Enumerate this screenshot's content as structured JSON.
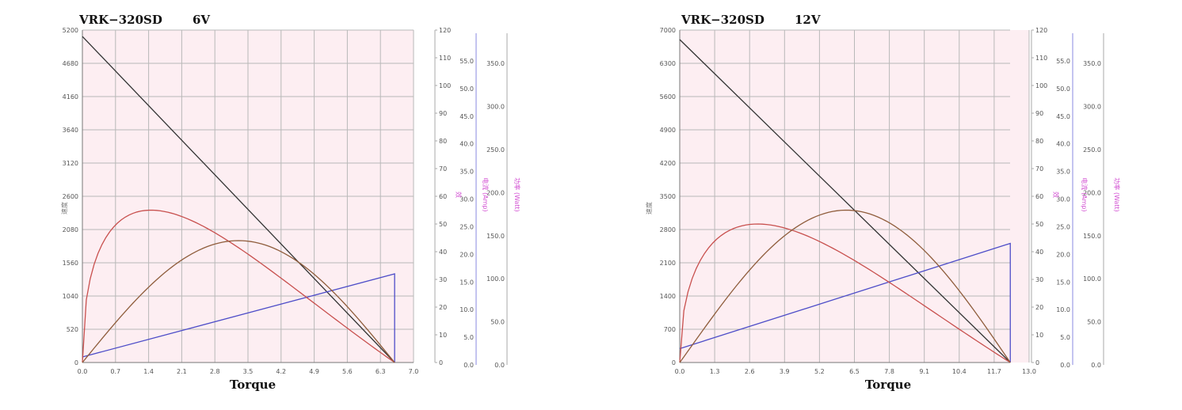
{
  "chart_data": [
    {
      "type": "line",
      "title": "VRK−320SD",
      "subtitle": "6V",
      "xlabel": "Torque",
      "ylabel": "速度",
      "xlim": [
        0,
        7.0
      ],
      "x_ticks": [
        "0.0",
        "0.7",
        "1.4",
        "2.1",
        "2.8",
        "3.5",
        "4.2",
        "4.9",
        "5.6",
        "6.3",
        "7.0"
      ],
      "y_left_lim": [
        0,
        5200
      ],
      "y_left_ticks": [
        "0",
        "520",
        "1040",
        "1560",
        "2080",
        "2600",
        "3120",
        "3640",
        "4160",
        "4680",
        "5200"
      ],
      "y_right1_lim": [
        0,
        120
      ],
      "y_right1_ticks": [
        "0",
        "10",
        "20",
        "30",
        "40",
        "50",
        "60",
        "70",
        "80",
        "90",
        "100",
        "110",
        "120"
      ],
      "y_right2_lim": [
        0,
        60
      ],
      "y_right2_ticks": [
        "0.0",
        "5.0",
        "10.0",
        "15.0",
        "20.0",
        "25.0",
        "30.0",
        "35.0",
        "40.0",
        "45.0",
        "50.0",
        "55.0"
      ],
      "y_right3_lim": [
        0,
        385
      ],
      "y_right3_ticks": [
        "0.0",
        "50.0",
        "100.0",
        "150.0",
        "200.0",
        "250.0",
        "300.0",
        "350.0"
      ],
      "right_labels": [
        "效",
        "电流 (Amp)",
        "功率 (Watt)"
      ],
      "stall_torque": 6.6,
      "series": [
        {
          "role": "speed",
          "color": "#333333",
          "axis": "left",
          "x": [
            0,
            6.6
          ],
          "values": [
            5100,
            0
          ]
        },
        {
          "role": "current",
          "color": "#4d4dc8",
          "axis": "right1",
          "x": [
            0,
            6.6,
            6.6
          ],
          "values": [
            2,
            32,
            0
          ]
        },
        {
          "role": "efficiency",
          "color": "#c8504e",
          "axis": "right1",
          "peak_x": 1.45,
          "peak_value": 55
        },
        {
          "role": "power",
          "color": "#8f5d3c",
          "axis": "right1",
          "peak_x": 3.3,
          "peak_value": 44
        }
      ]
    },
    {
      "type": "line",
      "title": "VRK−320SD",
      "subtitle": "12V",
      "xlabel": "Torque",
      "ylabel": "速度",
      "xlim": [
        0,
        13.0
      ],
      "x_ticks": [
        "0.0",
        "1.3",
        "2.6",
        "3.9",
        "5.2",
        "6.5",
        "7.8",
        "9.1",
        "10.4",
        "11.7",
        "13.0"
      ],
      "y_left_lim": [
        0,
        7000
      ],
      "y_left_ticks": [
        "0",
        "700",
        "1400",
        "2100",
        "2800",
        "3500",
        "4200",
        "4900",
        "5600",
        "6300",
        "7000"
      ],
      "y_right1_lim": [
        0,
        120
      ],
      "y_right1_ticks": [
        "0",
        "10",
        "20",
        "30",
        "40",
        "50",
        "60",
        "70",
        "80",
        "90",
        "100",
        "110",
        "120"
      ],
      "y_right2_lim": [
        0,
        60
      ],
      "y_right2_ticks": [
        "0.0",
        "5.0",
        "10.0",
        "15.0",
        "20.0",
        "25.0",
        "30.0",
        "35.0",
        "40.0",
        "45.0",
        "50.0",
        "55.0"
      ],
      "y_right3_lim": [
        0,
        385
      ],
      "y_right3_ticks": [
        "0.0",
        "50.0",
        "100.0",
        "150.0",
        "200.0",
        "250.0",
        "300.0",
        "350.0"
      ],
      "right_labels": [
        "效",
        "电流 (Amp)",
        "功率 (Watt)"
      ],
      "stall_torque": 12.3,
      "series": [
        {
          "role": "speed",
          "color": "#333333",
          "axis": "left",
          "x": [
            0,
            12.3
          ],
          "values": [
            6800,
            0
          ]
        },
        {
          "role": "current",
          "color": "#4d4dc8",
          "axis": "right1",
          "x": [
            0,
            12.3,
            12.3
          ],
          "values": [
            5,
            43,
            0
          ]
        },
        {
          "role": "efficiency",
          "color": "#c8504e",
          "axis": "right1",
          "peak_x": 2.9,
          "peak_value": 50
        },
        {
          "role": "power",
          "color": "#8f5d3c",
          "axis": "right1",
          "peak_x": 6.2,
          "peak_value": 55
        }
      ]
    }
  ],
  "colors": {
    "plot_background": "#fdeef2",
    "grid": "#b8b8b8"
  }
}
